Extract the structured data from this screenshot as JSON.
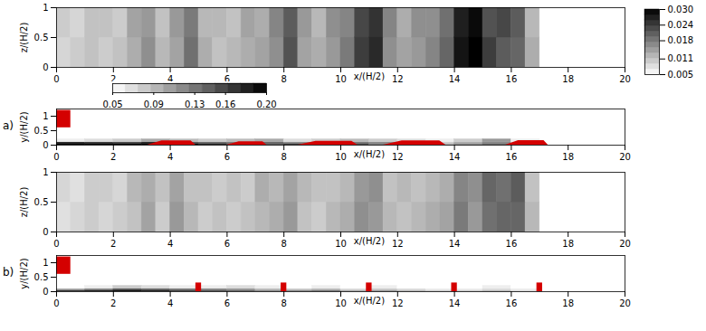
{
  "chart_data": [
    {
      "type": "heatmap",
      "xlabel": "x/(H/2)",
      "ylabel": "z/(H/2)",
      "xlim": [
        0,
        20
      ],
      "xticks": [
        0,
        2,
        4,
        6,
        8,
        10,
        12,
        14,
        16,
        18,
        20
      ],
      "ylim": [
        0,
        1
      ],
      "yticks": [
        0,
        0.5,
        1
      ],
      "clim": [
        0.005,
        0.03
      ],
      "cticks": [
        0.005,
        0.011,
        0.018,
        0.024,
        {
          "value": 0.03,
          "label": "0.030"
        }
      ],
      "cells": {
        "x": [
          0,
          0.5,
          1,
          1.5,
          2,
          2.5,
          3,
          3.5,
          4,
          4.5,
          5,
          5.5,
          6,
          6.5,
          7,
          7.5,
          8,
          8.5,
          9,
          9.5,
          10,
          10.5,
          11,
          11.5,
          12,
          12.5,
          13,
          13.5,
          14,
          14.5,
          15,
          15.5,
          16,
          16.5,
          17
        ],
        "y": [
          0,
          0.5,
          1
        ],
        "values": [
          [
            0.009,
            0.01,
            0.011,
            0.01,
            0.011,
            0.013,
            0.016,
            0.012,
            0.014,
            0.019,
            0.013,
            0.011,
            0.012,
            0.013,
            0.014,
            0.016,
            0.022,
            0.014,
            0.013,
            0.015,
            0.018,
            0.024,
            0.026,
            0.016,
            0.014,
            0.015,
            0.017,
            0.02,
            0.028,
            0.03,
            0.024,
            0.021,
            0.02,
            0.013
          ],
          [
            0.01,
            0.009,
            0.011,
            0.011,
            0.01,
            0.014,
            0.015,
            0.011,
            0.015,
            0.018,
            0.012,
            0.012,
            0.011,
            0.014,
            0.013,
            0.017,
            0.021,
            0.015,
            0.012,
            0.016,
            0.017,
            0.023,
            0.025,
            0.017,
            0.013,
            0.016,
            0.016,
            0.019,
            0.027,
            0.029,
            0.022,
            0.023,
            0.021,
            0.012
          ]
        ]
      }
    },
    {
      "type": "heatmap",
      "title": "a)",
      "xlabel": "x/(H/2)",
      "ylabel": "y/(H/2)",
      "xlim": [
        0,
        20
      ],
      "xticks": [
        0,
        2,
        4,
        6,
        8,
        10,
        12,
        14,
        16,
        18,
        20
      ],
      "ylim": [
        0,
        1.25
      ],
      "yticks": [
        0,
        0.5,
        1
      ],
      "clim": [
        0.05,
        0.2
      ],
      "cticks": [
        0.05,
        0.09,
        0.13,
        0.16,
        {
          "value": 0.2,
          "label": "0.20"
        }
      ],
      "color": "#d40000",
      "inlet": {
        "x": [
          0,
          0.5
        ],
        "y": [
          0.6,
          1.2
        ]
      },
      "deposits": [
        {
          "x0": 3.2,
          "x1": 4.9,
          "height": 0.15
        },
        {
          "x0": 6.0,
          "x1": 7.4,
          "height": 0.12
        },
        {
          "x0": 8.5,
          "x1": 10.6,
          "height": 0.13
        },
        {
          "x0": 11.5,
          "x1": 13.7,
          "height": 0.15
        },
        {
          "x0": 15.8,
          "x1": 17.3,
          "height": 0.16
        }
      ],
      "cells": {
        "x": [
          0,
          1,
          2,
          3,
          4,
          5,
          6,
          7,
          8,
          9,
          10,
          11,
          12,
          13,
          14,
          15,
          16,
          17
        ],
        "y": [
          0,
          0.05,
          0.1,
          0.2
        ],
        "values": [
          [
            0.2,
            0.2,
            0.2,
            0.2,
            0.2,
            0.18,
            0.16,
            0.15,
            0.17,
            0.14,
            0.16,
            0.13,
            0.11,
            0.1,
            0.12,
            0.14,
            0.1
          ],
          [
            0.18,
            0.17,
            0.16,
            0.18,
            0.15,
            0.14,
            0.13,
            0.14,
            0.12,
            0.11,
            0.13,
            0.12,
            0.09,
            0.08,
            0.1,
            0.12,
            0.08
          ],
          [
            0.06,
            0.07,
            0.08,
            0.1,
            0.09,
            0.08,
            0.09,
            0.1,
            0.07,
            0.08,
            0.09,
            0.08,
            0.07,
            0.06,
            0.08,
            0.11,
            0.06
          ]
        ]
      }
    },
    {
      "type": "heatmap",
      "xlabel": "x/(H/2)",
      "ylabel": "z/(H/2)",
      "xlim": [
        0,
        20
      ],
      "xticks": [
        0,
        2,
        4,
        6,
        8,
        10,
        12,
        14,
        16,
        18,
        20
      ],
      "ylim": [
        0,
        1
      ],
      "yticks": [
        0,
        0.5,
        1
      ],
      "clim": [
        0.005,
        0.03
      ],
      "cells": {
        "x": [
          0,
          0.5,
          1,
          1.5,
          2,
          2.5,
          3,
          3.5,
          4,
          4.5,
          5,
          5.5,
          6,
          6.5,
          7,
          7.5,
          8,
          8.5,
          9,
          9.5,
          10,
          10.5,
          11,
          11.5,
          12,
          12.5,
          13,
          13.5,
          14,
          14.5,
          15,
          15.5,
          16,
          16.5,
          17
        ],
        "y": [
          0,
          0.5,
          1
        ],
        "values": [
          [
            0.008,
            0.009,
            0.01,
            0.009,
            0.01,
            0.011,
            0.014,
            0.01,
            0.015,
            0.012,
            0.01,
            0.011,
            0.01,
            0.011,
            0.012,
            0.013,
            0.015,
            0.011,
            0.01,
            0.012,
            0.013,
            0.016,
            0.015,
            0.012,
            0.011,
            0.012,
            0.013,
            0.014,
            0.018,
            0.015,
            0.019,
            0.02,
            0.02,
            0.012
          ],
          [
            0.009,
            0.008,
            0.01,
            0.01,
            0.009,
            0.012,
            0.013,
            0.011,
            0.014,
            0.011,
            0.011,
            0.01,
            0.011,
            0.01,
            0.013,
            0.012,
            0.014,
            0.012,
            0.011,
            0.011,
            0.012,
            0.015,
            0.016,
            0.011,
            0.012,
            0.011,
            0.012,
            0.013,
            0.017,
            0.016,
            0.02,
            0.019,
            0.021,
            0.011
          ]
        ]
      }
    },
    {
      "type": "heatmap",
      "title": "b)",
      "xlabel": "x/(H/2)",
      "ylabel": "y/(H/2)",
      "xlim": [
        0,
        20
      ],
      "xticks": [
        0,
        2,
        4,
        6,
        8,
        10,
        12,
        14,
        16,
        18,
        20
      ],
      "ylim": [
        0,
        1.25
      ],
      "yticks": [
        0,
        0.5,
        1
      ],
      "clim": [
        0.05,
        0.2
      ],
      "color": "#d40000",
      "inlet": {
        "x": [
          0,
          0.5
        ],
        "y": [
          0.6,
          1.2
        ]
      },
      "obstacles": {
        "x": [
          5,
          8,
          11,
          14,
          17
        ],
        "width": 0.2,
        "height": 0.3
      },
      "cells": {
        "x": [
          0,
          1,
          2,
          3,
          4,
          5,
          6,
          7,
          8,
          9,
          10,
          11,
          12,
          13,
          14,
          15,
          16,
          17
        ],
        "y": [
          0,
          0.05,
          0.1,
          0.2
        ],
        "values": [
          [
            0.17,
            0.18,
            0.19,
            0.18,
            0.16,
            0.15,
            0.14,
            0.12,
            0.12,
            0.13,
            0.1,
            0.11,
            0.09,
            0.08,
            0.08,
            0.09,
            0.07
          ],
          [
            0.1,
            0.12,
            0.15,
            0.14,
            0.13,
            0.12,
            0.11,
            0.09,
            0.08,
            0.09,
            0.07,
            0.08,
            0.07,
            0.06,
            0.06,
            0.07,
            0.06
          ],
          [
            0.05,
            0.06,
            0.08,
            0.07,
            0.06,
            0.06,
            0.07,
            0.06,
            0.05,
            0.06,
            0.05,
            0.06,
            0.05,
            0.05,
            0.05,
            0.06,
            0.05
          ]
        ]
      }
    }
  ]
}
